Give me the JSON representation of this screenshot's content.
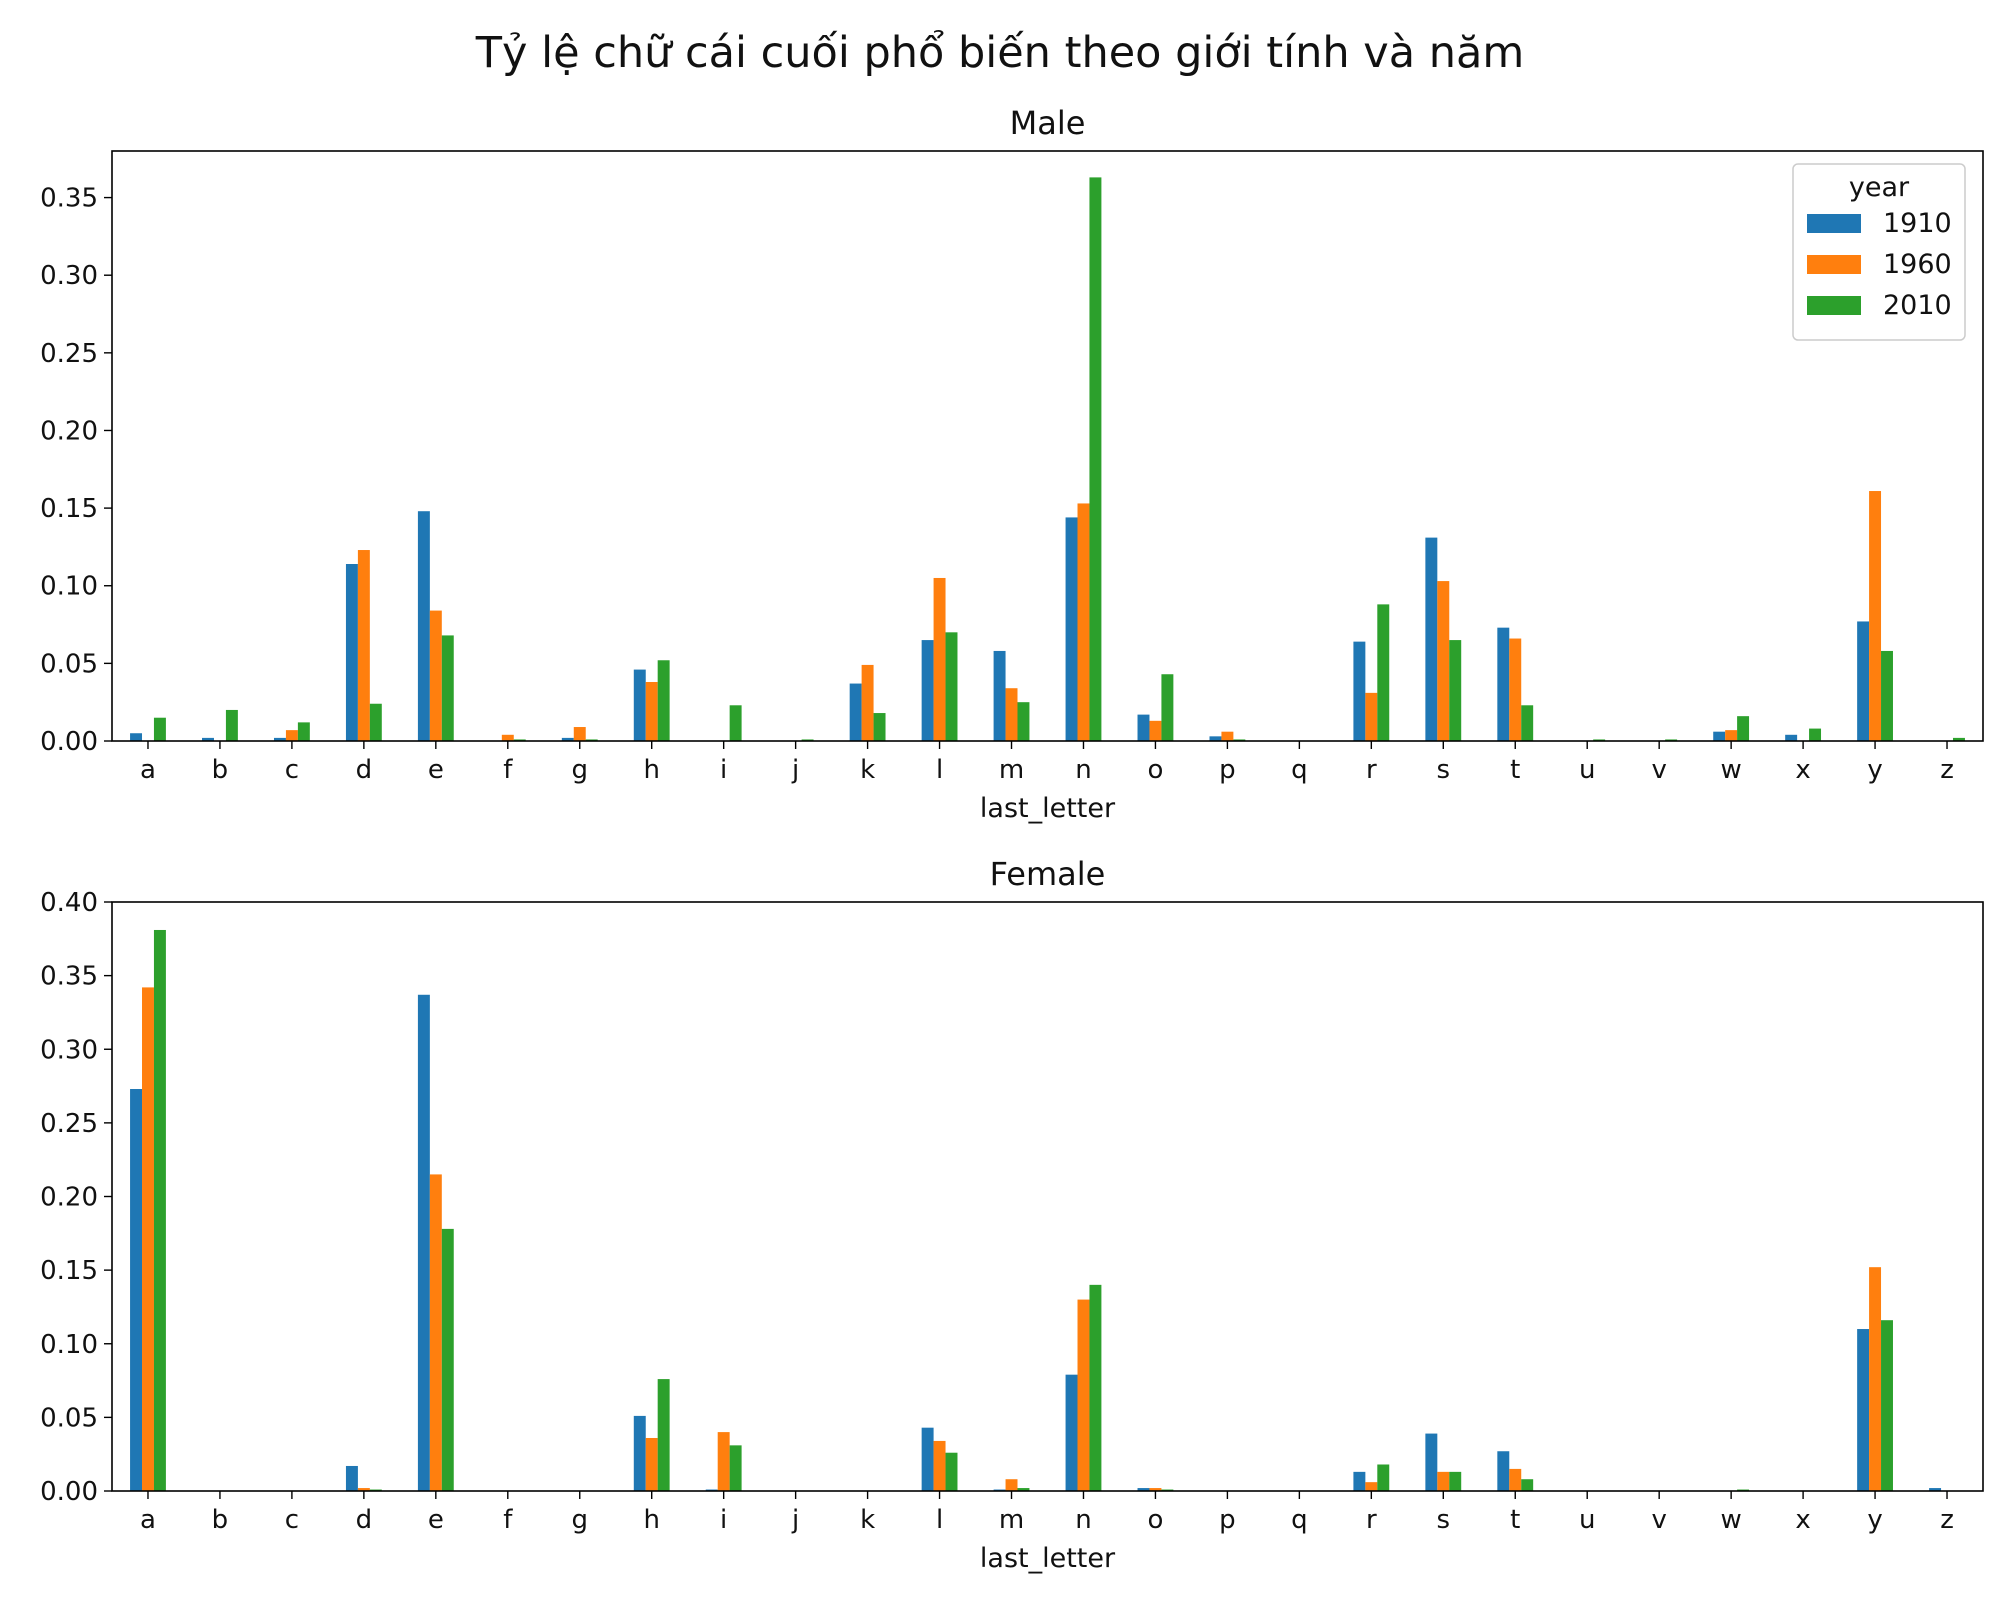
{
  "title": "Tỷ lệ chữ cái cuối phổ biến theo giới tính và năm",
  "chart_data": {
    "type": "bar",
    "categories": [
      "a",
      "b",
      "c",
      "d",
      "e",
      "f",
      "g",
      "h",
      "i",
      "j",
      "k",
      "l",
      "m",
      "n",
      "o",
      "p",
      "q",
      "r",
      "s",
      "t",
      "u",
      "v",
      "w",
      "x",
      "y",
      "z"
    ],
    "legend": {
      "title": "year",
      "placement": "top-right",
      "entries": [
        "1910",
        "1960",
        "2010"
      ]
    },
    "colors": [
      "#1f77b4",
      "#ff7f0e",
      "#2ca02c"
    ],
    "panels": [
      {
        "title": "Male",
        "xlabel": "last_letter",
        "ylabel": "",
        "ylim": [
          0,
          0.38
        ],
        "yticks": [
          "0.00",
          "0.05",
          "0.10",
          "0.15",
          "0.20",
          "0.25",
          "0.30",
          "0.35"
        ],
        "series": [
          {
            "name": "1910",
            "values": [
              0.005,
              0.002,
              0.002,
              0.114,
              0.148,
              0.0,
              0.002,
              0.046,
              0.0,
              0.0,
              0.037,
              0.065,
              0.058,
              0.144,
              0.017,
              0.003,
              0.0,
              0.064,
              0.131,
              0.073,
              0.0,
              0.0,
              0.006,
              0.004,
              0.077,
              0.0
            ]
          },
          {
            "name": "1960",
            "values": [
              0.0,
              0.0,
              0.007,
              0.123,
              0.084,
              0.004,
              0.009,
              0.038,
              0.0,
              0.0,
              0.049,
              0.105,
              0.034,
              0.153,
              0.013,
              0.006,
              0.0,
              0.031,
              0.103,
              0.066,
              0.0,
              0.0,
              0.007,
              0.0,
              0.161,
              0.0
            ]
          },
          {
            "name": "2010",
            "values": [
              0.015,
              0.02,
              0.012,
              0.024,
              0.068,
              0.001,
              0.001,
              0.052,
              0.023,
              0.001,
              0.018,
              0.07,
              0.025,
              0.363,
              0.043,
              0.001,
              0.0,
              0.088,
              0.065,
              0.023,
              0.001,
              0.001,
              0.016,
              0.008,
              0.058,
              0.002
            ]
          }
        ]
      },
      {
        "title": "Female",
        "xlabel": "last_letter",
        "ylabel": "",
        "ylim": [
          0,
          0.4
        ],
        "yticks": [
          "0.00",
          "0.05",
          "0.10",
          "0.15",
          "0.20",
          "0.25",
          "0.30",
          "0.35",
          "0.40"
        ],
        "series": [
          {
            "name": "1910",
            "values": [
              0.273,
              0.0,
              0.0,
              0.017,
              0.337,
              0.0,
              0.0,
              0.051,
              0.001,
              0.0,
              0.0,
              0.043,
              0.001,
              0.079,
              0.002,
              0.0,
              0.0,
              0.013,
              0.039,
              0.027,
              0.0,
              0.0,
              0.0,
              0.0,
              0.11,
              0.002
            ]
          },
          {
            "name": "1960",
            "values": [
              0.342,
              0.0,
              0.0,
              0.002,
              0.215,
              0.0,
              0.0,
              0.036,
              0.04,
              0.0,
              0.0,
              0.034,
              0.008,
              0.13,
              0.002,
              0.0,
              0.0,
              0.006,
              0.013,
              0.015,
              0.0,
              0.0,
              0.0,
              0.0,
              0.152,
              0.0
            ]
          },
          {
            "name": "2010",
            "values": [
              0.381,
              0.0,
              0.0,
              0.001,
              0.178,
              0.0,
              0.0,
              0.076,
              0.031,
              0.0,
              0.0,
              0.026,
              0.002,
              0.14,
              0.001,
              0.0,
              0.0,
              0.018,
              0.013,
              0.008,
              0.0,
              0.0,
              0.001,
              0.0,
              0.116,
              0.0
            ]
          }
        ]
      }
    ]
  }
}
